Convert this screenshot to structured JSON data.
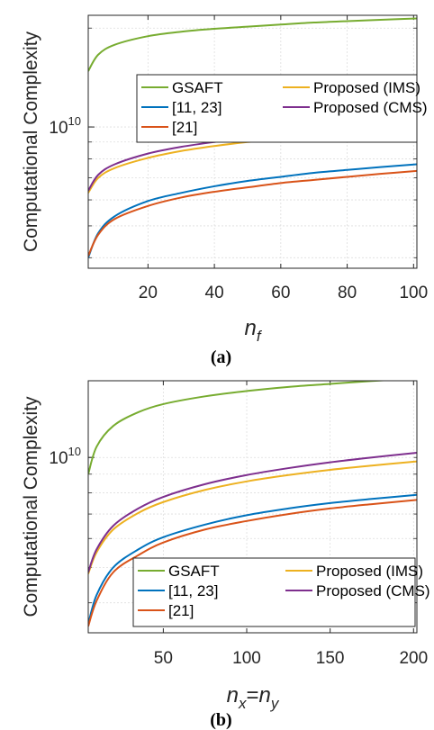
{
  "chart_data": [
    {
      "type": "line",
      "caption": "(a)",
      "ylabel": "Computational Complexity",
      "xlabel_base": "n",
      "xlabel_sub": "f",
      "xlabel_mid": "",
      "xlabel_base2": "",
      "xlabel_sub2": "",
      "yscale": "log",
      "xlim": [
        2,
        101
      ],
      "ylim_log10": [
        9.57,
        10.34
      ],
      "xticks": [
        20,
        40,
        60,
        80,
        100
      ],
      "ytick_values_log10": [
        10
      ],
      "ytick_base": "10",
      "ytick_exp": "10",
      "grid": true,
      "legend_position": "upper-center",
      "legend_columns": 2,
      "series": [
        {
          "name": "GSAFT",
          "color": "#77AC30",
          "x": [
            2,
            5,
            10,
            20,
            30,
            40,
            50,
            60,
            70,
            80,
            90,
            101
          ],
          "y": [
            14800000000.0,
            16600000000.0,
            17800000000.0,
            18900000000.0,
            19500000000.0,
            19900000000.0,
            20200000000.0,
            20500000000.0,
            20800000000.0,
            21000000000.0,
            21200000000.0,
            21400000000.0
          ]
        },
        {
          "name": "[11, 23]",
          "color": "#0072BD",
          "x": [
            2,
            5,
            10,
            20,
            30,
            40,
            50,
            60,
            70,
            80,
            90,
            101
          ],
          "y": [
            4000000000.0,
            4750000000.0,
            5350000000.0,
            5950000000.0,
            6300000000.0,
            6600000000.0,
            6850000000.0,
            7050000000.0,
            7250000000.0,
            7400000000.0,
            7550000000.0,
            7700000000.0
          ]
        },
        {
          "name": "[21]",
          "color": "#D95319",
          "x": [
            2,
            5,
            10,
            20,
            30,
            40,
            50,
            60,
            70,
            80,
            90,
            101
          ],
          "y": [
            4050000000.0,
            4700000000.0,
            5250000000.0,
            5750000000.0,
            6100000000.0,
            6350000000.0,
            6550000000.0,
            6750000000.0,
            6900000000.0,
            7050000000.0,
            7200000000.0,
            7350000000.0
          ]
        },
        {
          "name": "Proposed (IMS)",
          "color": "#EDB120",
          "x": [
            2,
            5,
            10,
            20,
            30,
            40,
            50,
            60,
            70,
            80,
            90,
            101
          ],
          "y": [
            6300000000.0,
            7000000000.0,
            7500000000.0,
            8050000000.0,
            8450000000.0,
            8750000000.0,
            9000000000.0,
            9200000000.0,
            9400000000.0,
            9550000000.0,
            9700000000.0,
            9850000000.0
          ]
        },
        {
          "name": "Proposed (CMS)",
          "color": "#7E2F8E",
          "x": [
            2,
            5,
            10,
            20,
            30,
            40,
            50,
            60,
            70,
            80,
            90,
            101
          ],
          "y": [
            6400000000.0,
            7150000000.0,
            7700000000.0,
            8300000000.0,
            8700000000.0,
            9000000000.0,
            9250000000.0,
            9450000000.0,
            9650000000.0,
            9800000000.0,
            9950000000.0,
            10100000000.0
          ]
        }
      ]
    },
    {
      "type": "line",
      "caption": "(b)",
      "ylabel": "Computational Complexity",
      "xlabel_base": "n",
      "xlabel_sub": "x",
      "xlabel_mid": "=",
      "xlabel_base2": "n",
      "xlabel_sub2": "y",
      "yscale": "log",
      "xlim": [
        5,
        202
      ],
      "ylim_log10": [
        9.52,
        10.21
      ],
      "xticks": [
        50,
        100,
        150,
        200
      ],
      "ytick_values_log10": [
        10
      ],
      "ytick_base": "10",
      "ytick_exp": "10",
      "grid": true,
      "legend_position": "bottom-right",
      "legend_columns": 2,
      "series": [
        {
          "name": "GSAFT",
          "color": "#77AC30",
          "x": [
            5,
            10,
            20,
            35,
            50,
            75,
            100,
            125,
            150,
            175,
            202
          ],
          "y": [
            9000000000.0,
            10700000000.0,
            12200000000.0,
            13300000000.0,
            14000000000.0,
            14700000000.0,
            15200000000.0,
            15600000000.0,
            15900000000.0,
            16200000000.0,
            16450000000.0
          ]
        },
        {
          "name": "[11, 23]",
          "color": "#0072BD",
          "x": [
            5,
            10,
            20,
            35,
            50,
            75,
            100,
            125,
            150,
            175,
            202
          ],
          "y": [
            3500000000.0,
            4200000000.0,
            5000000000.0,
            5600000000.0,
            6050000000.0,
            6550000000.0,
            6950000000.0,
            7250000000.0,
            7500000000.0,
            7700000000.0,
            7900000000.0
          ]
        },
        {
          "name": "[21]",
          "color": "#D95319",
          "x": [
            5,
            10,
            20,
            35,
            50,
            75,
            100,
            125,
            150,
            175,
            202
          ],
          "y": [
            3450000000.0,
            4050000000.0,
            4850000000.0,
            5400000000.0,
            5850000000.0,
            6350000000.0,
            6700000000.0,
            7000000000.0,
            7250000000.0,
            7450000000.0,
            7650000000.0
          ]
        },
        {
          "name": "Proposed (IMS)",
          "color": "#EDB120",
          "x": [
            5,
            10,
            20,
            35,
            50,
            75,
            100,
            125,
            150,
            175,
            202
          ],
          "y": [
            4800000000.0,
            5500000000.0,
            6350000000.0,
            7050000000.0,
            7550000000.0,
            8150000000.0,
            8600000000.0,
            8950000000.0,
            9250000000.0,
            9500000000.0,
            9750000000.0
          ]
        },
        {
          "name": "Proposed (CMS)",
          "color": "#7E2F8E",
          "x": [
            5,
            10,
            20,
            35,
            50,
            75,
            100,
            125,
            150,
            175,
            202
          ],
          "y": [
            4850000000.0,
            5600000000.0,
            6500000000.0,
            7250000000.0,
            7800000000.0,
            8450000000.0,
            8950000000.0,
            9350000000.0,
            9700000000.0,
            10000000000.0,
            10300000000.0
          ]
        }
      ]
    }
  ]
}
